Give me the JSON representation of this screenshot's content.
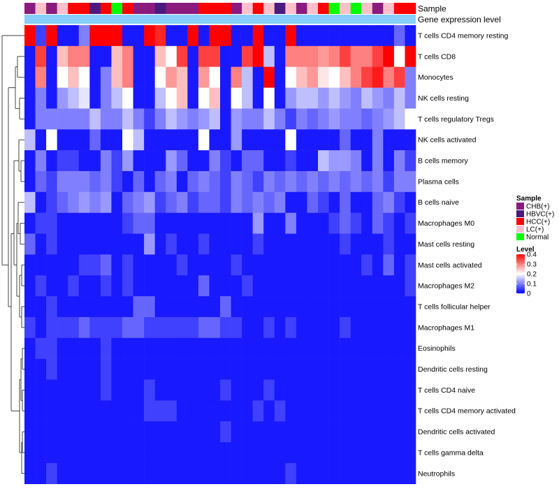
{
  "chart_data": {
    "type": "heatmap",
    "annotation_labels": [
      "Sample",
      "Gene expression level"
    ],
    "row_labels": [
      "T cells CD4 memory resting",
      "T cells CD8",
      "Monocytes",
      "NK cells resting",
      "T cells regulatory  Tregs",
      "NK cells activated",
      "B cells memory",
      "Plasma cells",
      "B cells naive",
      "Macrophages M0",
      "Mast cells resting",
      "Mast cells activated",
      "Macrophages M2",
      "T cells follicular helper",
      "Macrophages M1",
      "Eosinophils",
      "Dendritic cells resting",
      "T cells CD4 naive",
      "T cells CD4 memory activated",
      "Dendritic cells activated",
      "T cells gamma delta",
      "Neutrophils"
    ],
    "sample_annotation": [
      "CHB",
      "LC",
      "CHB",
      "LC",
      "HCC",
      "HCC",
      "HBVC",
      "HCC",
      "Normal",
      "HCC",
      "CHB",
      "CHB",
      "HBVC",
      "CHB",
      "CHB",
      "CHB",
      "HCC",
      "HCC",
      "HCC",
      "CHB",
      "LC",
      "HCC",
      "LC",
      "HBVC",
      "LC",
      "CHB",
      "LC",
      "HCC",
      "Normal",
      "LC",
      "Normal",
      "LC",
      "CHB",
      "LC",
      "HCC",
      "HCC"
    ],
    "values": [
      [
        0.4,
        0.05,
        0.4,
        0.02,
        0.02,
        0.1,
        0.4,
        0.4,
        0.4,
        0.02,
        0.02,
        0.4,
        0.37,
        0.02,
        0.02,
        0.4,
        0.02,
        0.4,
        0.4,
        0.02,
        0.02,
        0.4,
        0.02,
        0.02,
        0.4,
        0.02,
        0.02,
        0.02,
        0.02,
        0.02,
        0.02,
        0.02,
        0.02,
        0.02,
        0.08,
        0.02
      ],
      [
        0.02,
        0.35,
        0.02,
        0.25,
        0.3,
        0.3,
        0.02,
        0.02,
        0.25,
        0.3,
        0.02,
        0.02,
        0.25,
        0.2,
        0.35,
        0.02,
        0.35,
        0.35,
        0.02,
        0.02,
        0.35,
        0.4,
        0.15,
        0.02,
        0.3,
        0.3,
        0.3,
        0.28,
        0.3,
        0.35,
        0.3,
        0.3,
        0.35,
        0.4,
        0.2,
        0.4
      ],
      [
        0.02,
        0.3,
        0.02,
        0.2,
        0.25,
        0.2,
        0.02,
        0.1,
        0.25,
        0.3,
        0.02,
        0.02,
        0.2,
        0.28,
        0.25,
        0.02,
        0.28,
        0.2,
        0.02,
        0.3,
        0.15,
        0.02,
        0.4,
        0.02,
        0.2,
        0.25,
        0.28,
        0.22,
        0.2,
        0.25,
        0.3,
        0.35,
        0.38,
        0.3,
        0.35,
        0.1
      ],
      [
        0.02,
        0.1,
        0.02,
        0.12,
        0.15,
        0.18,
        0.02,
        0.1,
        0.15,
        0.2,
        0.02,
        0.02,
        0.15,
        0.2,
        0.25,
        0.02,
        0.2,
        0.25,
        0.02,
        0.2,
        0.15,
        0.02,
        0.2,
        0.02,
        0.12,
        0.15,
        0.15,
        0.12,
        0.15,
        0.12,
        0.1,
        0.15,
        0.12,
        0.1,
        0.15,
        0.1
      ],
      [
        0.02,
        0.1,
        0.1,
        0.1,
        0.1,
        0.1,
        0.15,
        0.1,
        0.1,
        0.15,
        0.1,
        0.05,
        0.1,
        0.15,
        0.12,
        0.1,
        0.12,
        0.15,
        0.02,
        0.12,
        0.1,
        0.1,
        0.15,
        0.1,
        0.05,
        0.1,
        0.08,
        0.1,
        0.12,
        0.1,
        0.1,
        0.08,
        0.1,
        0.12,
        0.15,
        0.2
      ],
      [
        0.15,
        0.02,
        0.2,
        0.02,
        0.02,
        0.02,
        0.08,
        0.02,
        0.02,
        0.2,
        0.15,
        0.02,
        0.02,
        0.02,
        0.02,
        0.02,
        0.2,
        0.02,
        0.02,
        0.12,
        0.02,
        0.02,
        0.02,
        0.02,
        0.2,
        0.02,
        0.02,
        0.02,
        0.02,
        0.08,
        0.02,
        0.02,
        0.1,
        0.02,
        0.02,
        0.02
      ],
      [
        0.02,
        0.1,
        0.02,
        0.05,
        0.05,
        0.02,
        0.02,
        0.1,
        0.05,
        0.12,
        0.02,
        0.02,
        0.02,
        0.12,
        0.08,
        0.02,
        0.02,
        0.1,
        0.05,
        0.02,
        0.08,
        0.08,
        0.02,
        0.02,
        0.05,
        0.02,
        0.02,
        0.15,
        0.12,
        0.12,
        0.1,
        0.02,
        0.1,
        0.02,
        0.1,
        0.05
      ],
      [
        0.02,
        0.08,
        0.05,
        0.1,
        0.1,
        0.1,
        0.08,
        0.1,
        0.05,
        0.02,
        0.08,
        0.02,
        0.08,
        0.1,
        0.02,
        0.08,
        0.1,
        0.08,
        0.05,
        0.1,
        0.08,
        0.05,
        0.1,
        0.08,
        0.1,
        0.08,
        0.1,
        0.08,
        0.1,
        0.08,
        0.1,
        0.08,
        0.1,
        0.05,
        0.1,
        0.1
      ],
      [
        0.15,
        0.02,
        0.05,
        0.08,
        0.1,
        0.12,
        0.1,
        0.12,
        0.02,
        0.08,
        0.1,
        0.12,
        0.05,
        0.08,
        0.1,
        0.05,
        0.08,
        0.08,
        0.05,
        0.1,
        0.08,
        0.1,
        0.08,
        0.1,
        0.02,
        0.02,
        0.08,
        0.05,
        0.02,
        0.08,
        0.02,
        0.02,
        0.08,
        0.1,
        0.05,
        0.02
      ],
      [
        0.02,
        0.05,
        0.05,
        0.02,
        0.02,
        0.02,
        0.02,
        0.02,
        0.02,
        0.05,
        0.08,
        0.08,
        0.02,
        0.02,
        0.02,
        0.02,
        0.02,
        0.02,
        0.02,
        0.02,
        0.02,
        0.12,
        0.02,
        0.02,
        0.1,
        0.02,
        0.02,
        0.02,
        0.05,
        0.08,
        0.05,
        0.02,
        0.08,
        0.05,
        0.02,
        0.05
      ],
      [
        0.08,
        0.02,
        0.05,
        0.02,
        0.02,
        0.02,
        0.02,
        0.02,
        0.02,
        0.02,
        0.02,
        0.12,
        0.02,
        0.05,
        0.02,
        0.02,
        0.05,
        0.02,
        0.02,
        0.02,
        0.02,
        0.05,
        0.02,
        0.02,
        0.02,
        0.02,
        0.02,
        0.02,
        0.02,
        0.05,
        0.02,
        0.02,
        0.02,
        0.05,
        0.02,
        0.02
      ],
      [
        0.02,
        0.02,
        0.02,
        0.02,
        0.02,
        0.05,
        0.05,
        0.08,
        0.02,
        0.05,
        0.02,
        0.02,
        0.02,
        0.02,
        0.05,
        0.02,
        0.02,
        0.02,
        0.02,
        0.05,
        0.02,
        0.02,
        0.02,
        0.02,
        0.02,
        0.02,
        0.02,
        0.02,
        0.02,
        0.02,
        0.02,
        0.05,
        0.02,
        0.08,
        0.02,
        0.05
      ],
      [
        0.02,
        0.05,
        0.02,
        0.02,
        0.05,
        0.02,
        0.02,
        0.05,
        0.02,
        0.05,
        0.02,
        0.02,
        0.02,
        0.02,
        0.02,
        0.02,
        0.08,
        0.02,
        0.02,
        0.02,
        0.05,
        0.02,
        0.02,
        0.02,
        0.02,
        0.02,
        0.02,
        0.02,
        0.02,
        0.02,
        0.02,
        0.02,
        0.02,
        0.02,
        0.02,
        0.05
      ],
      [
        0.02,
        0.02,
        0.05,
        0.02,
        0.02,
        0.02,
        0.02,
        0.02,
        0.02,
        0.02,
        0.08,
        0.08,
        0.02,
        0.02,
        0.02,
        0.02,
        0.02,
        0.02,
        0.08,
        0.02,
        0.02,
        0.02,
        0.02,
        0.02,
        0.02,
        0.02,
        0.02,
        0.02,
        0.02,
        0.02,
        0.02,
        0.02,
        0.02,
        0.02,
        0.02,
        0.02
      ],
      [
        0.05,
        0.02,
        0.05,
        0.05,
        0.05,
        0.08,
        0.05,
        0.05,
        0.05,
        0.08,
        0.08,
        0.05,
        0.05,
        0.05,
        0.05,
        0.05,
        0.08,
        0.08,
        0.05,
        0.05,
        0.02,
        0.02,
        0.05,
        0.02,
        0.05,
        0.02,
        0.02,
        0.02,
        0.02,
        0.05,
        0.02,
        0.02,
        0.02,
        0.02,
        0.02,
        0.02
      ],
      [
        0.02,
        0.05,
        0.05,
        0.02,
        0.02,
        0.02,
        0.02,
        0.05,
        0.02,
        0.02,
        0.02,
        0.02,
        0.02,
        0.02,
        0.02,
        0.02,
        0.02,
        0.02,
        0.02,
        0.02,
        0.02,
        0.02,
        0.02,
        0.02,
        0.02,
        0.02,
        0.02,
        0.02,
        0.02,
        0.02,
        0.02,
        0.02,
        0.02,
        0.02,
        0.02,
        0.02
      ],
      [
        0.02,
        0.02,
        0.05,
        0.02,
        0.02,
        0.02,
        0.02,
        0.05,
        0.02,
        0.02,
        0.02,
        0.02,
        0.02,
        0.02,
        0.02,
        0.02,
        0.02,
        0.02,
        0.02,
        0.02,
        0.02,
        0.02,
        0.02,
        0.02,
        0.02,
        0.02,
        0.02,
        0.02,
        0.02,
        0.02,
        0.02,
        0.02,
        0.02,
        0.02,
        0.02,
        0.02
      ],
      [
        0.02,
        0.02,
        0.02,
        0.02,
        0.02,
        0.02,
        0.02,
        0.05,
        0.02,
        0.02,
        0.02,
        0.05,
        0.02,
        0.02,
        0.02,
        0.02,
        0.02,
        0.02,
        0.05,
        0.02,
        0.02,
        0.02,
        0.05,
        0.02,
        0.02,
        0.02,
        0.02,
        0.02,
        0.02,
        0.02,
        0.02,
        0.02,
        0.02,
        0.02,
        0.02,
        0.02
      ],
      [
        0.02,
        0.02,
        0.02,
        0.02,
        0.02,
        0.02,
        0.02,
        0.02,
        0.02,
        0.02,
        0.02,
        0.05,
        0.05,
        0.05,
        0.02,
        0.02,
        0.02,
        0.02,
        0.02,
        0.02,
        0.02,
        0.05,
        0.02,
        0.05,
        0.02,
        0.02,
        0.02,
        0.02,
        0.02,
        0.02,
        0.02,
        0.02,
        0.02,
        0.02,
        0.02,
        0.02
      ],
      [
        0.02,
        0.02,
        0.02,
        0.02,
        0.02,
        0.02,
        0.02,
        0.02,
        0.02,
        0.02,
        0.02,
        0.02,
        0.02,
        0.02,
        0.02,
        0.02,
        0.02,
        0.02,
        0.05,
        0.02,
        0.02,
        0.02,
        0.02,
        0.02,
        0.02,
        0.02,
        0.02,
        0.02,
        0.02,
        0.02,
        0.02,
        0.02,
        0.02,
        0.02,
        0.02,
        0.02
      ],
      [
        0.02,
        0.02,
        0.02,
        0.02,
        0.02,
        0.02,
        0.02,
        0.02,
        0.02,
        0.02,
        0.02,
        0.02,
        0.02,
        0.02,
        0.02,
        0.02,
        0.02,
        0.02,
        0.02,
        0.02,
        0.02,
        0.02,
        0.02,
        0.02,
        0.02,
        0.02,
        0.02,
        0.02,
        0.02,
        0.02,
        0.02,
        0.02,
        0.02,
        0.02,
        0.02,
        0.02
      ],
      [
        0.02,
        0.02,
        0.05,
        0.02,
        0.02,
        0.02,
        0.02,
        0.02,
        0.02,
        0.02,
        0.02,
        0.02,
        0.02,
        0.02,
        0.02,
        0.02,
        0.02,
        0.02,
        0.02,
        0.02,
        0.02,
        0.02,
        0.02,
        0.02,
        0.05,
        0.02,
        0.02,
        0.02,
        0.02,
        0.02,
        0.02,
        0.02,
        0.02,
        0.02,
        0.02,
        0.02
      ]
    ],
    "color_scale": {
      "min": 0,
      "max": 0.4,
      "colors": [
        "#0000ff",
        "#ffffff",
        "#ff0000"
      ]
    },
    "legend": {
      "sample_title": "Sample",
      "sample_categories": [
        {
          "key": "CHB",
          "label": "CHB(+)",
          "color": "#8b1a7f"
        },
        {
          "key": "HBVC",
          "label": "HBVC(+)",
          "color": "#4b1a7f"
        },
        {
          "key": "HCC",
          "label": "HCC(+)",
          "color": "#ff0000"
        },
        {
          "key": "LC",
          "label": "LC(+)",
          "color": "#ffc0cb"
        },
        {
          "key": "Normal",
          "label": "Normal",
          "color": "#00ff00"
        }
      ],
      "level_title": "Level",
      "level_ticks": [
        "0.4",
        "0.3",
        "0.2",
        "0.1",
        "0"
      ],
      "level_tick_values": [
        0.4,
        0.3,
        0.2,
        0.1,
        0
      ]
    },
    "gene_expression_color": "#87cefa"
  }
}
